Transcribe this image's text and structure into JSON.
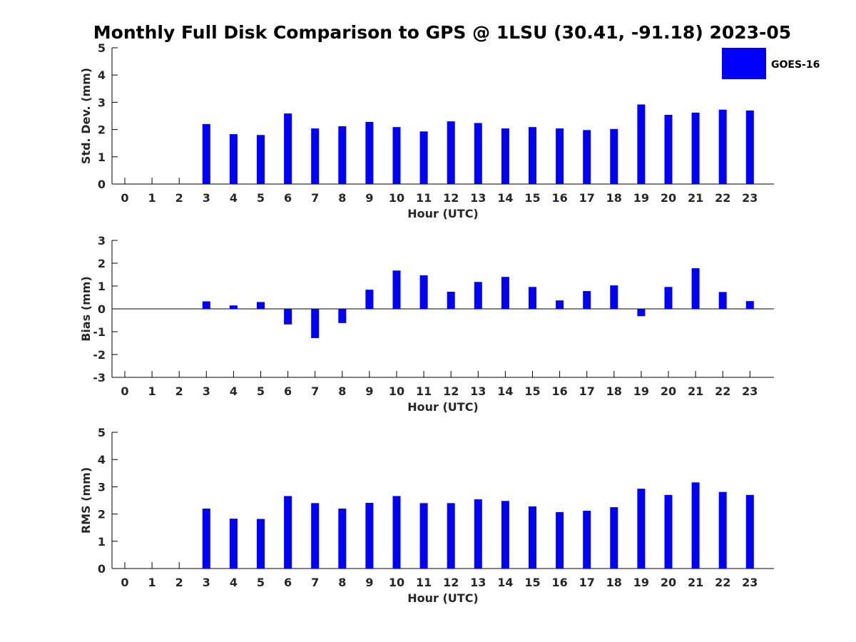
{
  "title": "Monthly Full Disk Comparison to GPS @ 1LSU (30.41, -91.18) 2023-05",
  "legend": {
    "label": "GOES-16",
    "color": "#0000ff"
  },
  "chart_data": [
    {
      "type": "bar",
      "xlabel": "Hour (UTC)",
      "ylabel": "Std. Dev. (mm)",
      "ylim": [
        0,
        5
      ],
      "yticks": [
        0,
        1,
        2,
        3,
        4,
        5
      ],
      "categories": [
        0,
        1,
        2,
        3,
        4,
        5,
        6,
        7,
        8,
        9,
        10,
        11,
        12,
        13,
        14,
        15,
        16,
        17,
        18,
        19,
        20,
        21,
        22,
        23
      ],
      "series": [
        {
          "name": "GOES-16",
          "color": "#0000ff",
          "values": [
            null,
            null,
            null,
            2.2,
            1.83,
            1.8,
            2.59,
            2.04,
            2.12,
            2.28,
            2.09,
            1.93,
            2.3,
            2.24,
            2.04,
            2.09,
            2.04,
            1.98,
            2.02,
            2.92,
            2.54,
            2.62,
            2.73,
            2.7
          ]
        }
      ],
      "legend": "top-right",
      "grid": false
    },
    {
      "type": "bar",
      "xlabel": "Hour (UTC)",
      "ylabel": "Bias (mm)",
      "ylim": [
        -3,
        3
      ],
      "yticks": [
        -3,
        -2,
        -1,
        0,
        1,
        2,
        3
      ],
      "categories": [
        0,
        1,
        2,
        3,
        4,
        5,
        6,
        7,
        8,
        9,
        10,
        11,
        12,
        13,
        14,
        15,
        16,
        17,
        18,
        19,
        20,
        21,
        22,
        23
      ],
      "series": [
        {
          "name": "GOES-16",
          "color": "#0000ff",
          "values": [
            null,
            null,
            null,
            0.33,
            0.15,
            0.3,
            -0.68,
            -1.28,
            -0.62,
            0.84,
            1.68,
            1.47,
            0.75,
            1.18,
            1.4,
            0.96,
            0.37,
            0.78,
            1.03,
            -0.32,
            0.96,
            1.78,
            0.74,
            0.34
          ]
        }
      ],
      "zero_line": true,
      "grid": false
    },
    {
      "type": "bar",
      "xlabel": "Hour (UTC)",
      "ylabel": "RMS (mm)",
      "ylim": [
        0,
        5
      ],
      "yticks": [
        0,
        1,
        2,
        3,
        4,
        5
      ],
      "categories": [
        0,
        1,
        2,
        3,
        4,
        5,
        6,
        7,
        8,
        9,
        10,
        11,
        12,
        13,
        14,
        15,
        16,
        17,
        18,
        19,
        20,
        21,
        22,
        23
      ],
      "series": [
        {
          "name": "GOES-16",
          "color": "#0000ff",
          "values": [
            null,
            null,
            null,
            2.2,
            1.83,
            1.82,
            2.66,
            2.4,
            2.2,
            2.41,
            2.66,
            2.4,
            2.4,
            2.54,
            2.48,
            2.28,
            2.07,
            2.12,
            2.25,
            2.93,
            2.7,
            3.16,
            2.81,
            2.7
          ]
        }
      ],
      "grid": false
    }
  ]
}
